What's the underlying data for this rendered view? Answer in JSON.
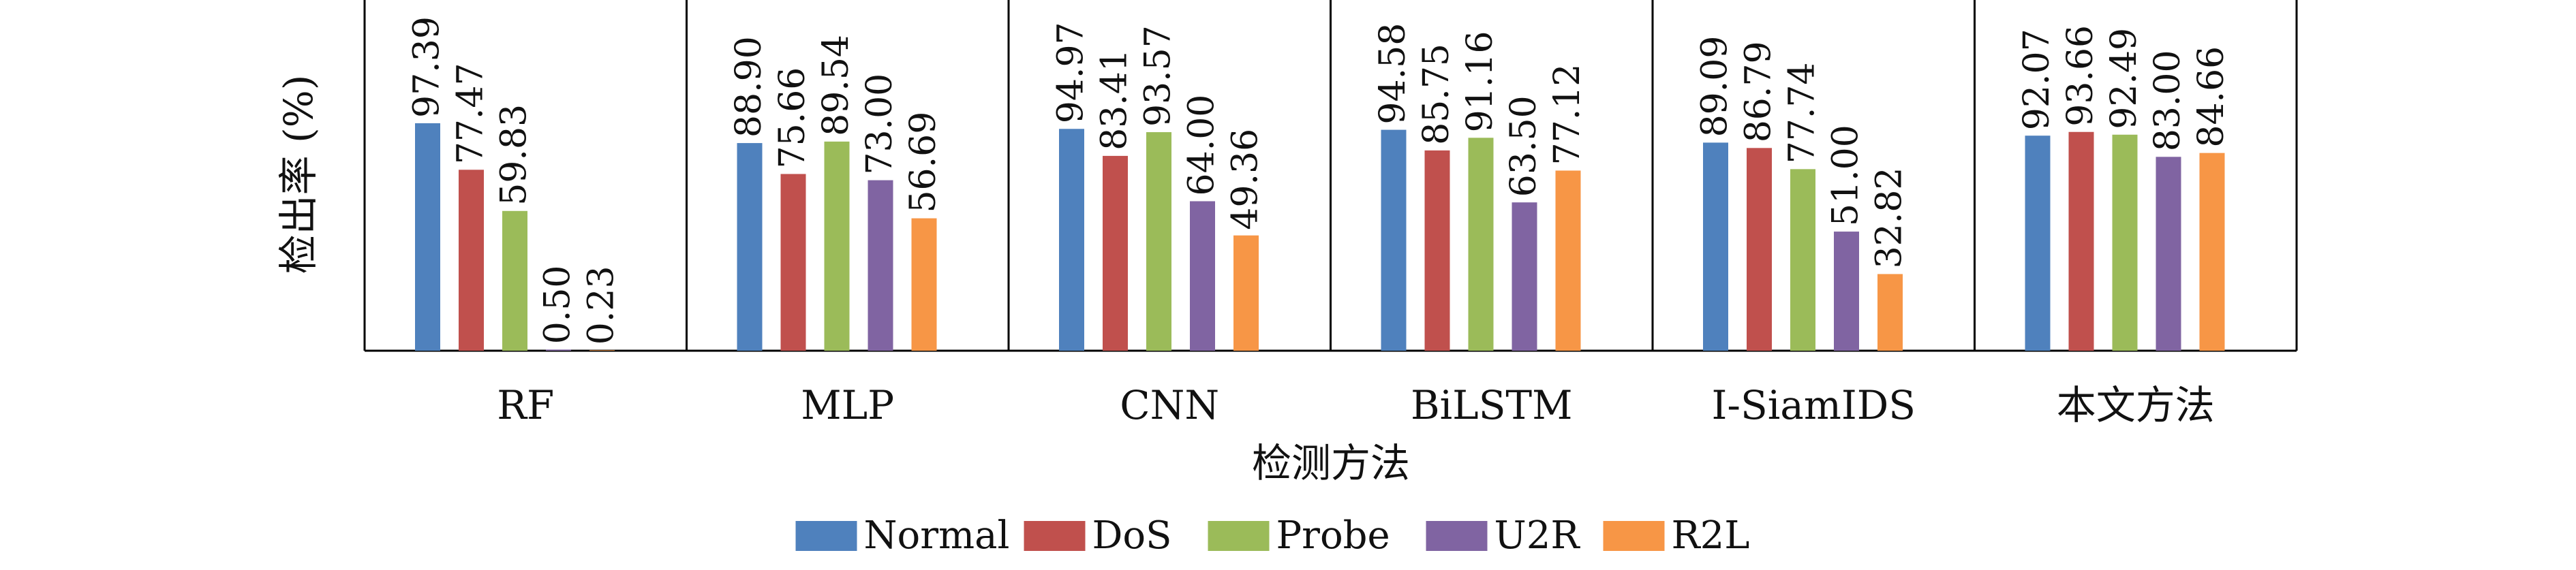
{
  "chart_data": {
    "type": "bar",
    "title": "",
    "ylabel": "检出率 (%)",
    "xlabel": "检测方法",
    "ylim": [
      0,
      100
    ],
    "grid": false,
    "legend_position": "bottom-center",
    "categories": [
      "RF",
      "MLP",
      "CNN",
      "BiLSTM",
      "I-SiamIDS",
      "本文方法"
    ],
    "series": [
      {
        "name": "Normal",
        "color": "#4f81bd",
        "values": [
          97.39,
          88.9,
          94.97,
          94.58,
          89.09,
          92.07
        ]
      },
      {
        "name": "DoS",
        "color": "#c0504d",
        "values": [
          77.47,
          75.66,
          83.41,
          85.75,
          86.79,
          93.66
        ]
      },
      {
        "name": "Probe",
        "color": "#9bbb59",
        "values": [
          59.83,
          89.54,
          93.57,
          91.16,
          77.74,
          92.49
        ]
      },
      {
        "name": "U2R",
        "color": "#8064a2",
        "values": [
          0.5,
          73.0,
          64.0,
          63.5,
          51.0,
          83.0
        ]
      },
      {
        "name": "R2L",
        "color": "#f79646",
        "values": [
          0.23,
          56.69,
          49.36,
          77.12,
          32.82,
          84.66
        ]
      }
    ]
  }
}
